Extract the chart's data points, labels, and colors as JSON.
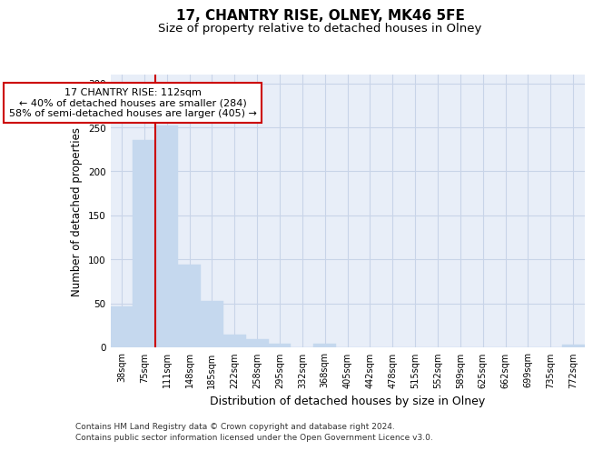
{
  "title": "17, CHANTRY RISE, OLNEY, MK46 5FE",
  "subtitle": "Size of property relative to detached houses in Olney",
  "xlabel": "Distribution of detached houses by size in Olney",
  "ylabel": "Number of detached properties",
  "categories": [
    "38sqm",
    "75sqm",
    "111sqm",
    "148sqm",
    "185sqm",
    "222sqm",
    "258sqm",
    "295sqm",
    "332sqm",
    "368sqm",
    "405sqm",
    "442sqm",
    "478sqm",
    "515sqm",
    "552sqm",
    "589sqm",
    "625sqm",
    "662sqm",
    "699sqm",
    "735sqm",
    "772sqm"
  ],
  "bar_values": [
    47,
    236,
    252,
    94,
    53,
    14,
    9,
    4,
    0,
    4,
    0,
    0,
    0,
    0,
    0,
    0,
    0,
    0,
    0,
    0,
    3
  ],
  "bar_color": "#c5d8ee",
  "bar_edge_color": "#c5d8ee",
  "red_line_x": 1.5,
  "annotation_text": "17 CHANTRY RISE: 112sqm\n← 40% of detached houses are smaller (284)\n58% of semi-detached houses are larger (405) →",
  "annotation_box_color": "#ffffff",
  "annotation_box_edge_color": "#cc0000",
  "red_line_color": "#cc0000",
  "ylim": [
    0,
    310
  ],
  "yticks": [
    0,
    50,
    100,
    150,
    200,
    250,
    300
  ],
  "grid_color": "#c8d4e8",
  "bg_color": "#e8eef8",
  "footer_line1": "Contains HM Land Registry data © Crown copyright and database right 2024.",
  "footer_line2": "Contains public sector information licensed under the Open Government Licence v3.0.",
  "title_fontsize": 11,
  "subtitle_fontsize": 9.5,
  "xlabel_fontsize": 9,
  "ylabel_fontsize": 8.5,
  "tick_fontsize": 7,
  "annotation_fontsize": 8,
  "footer_fontsize": 6.5
}
